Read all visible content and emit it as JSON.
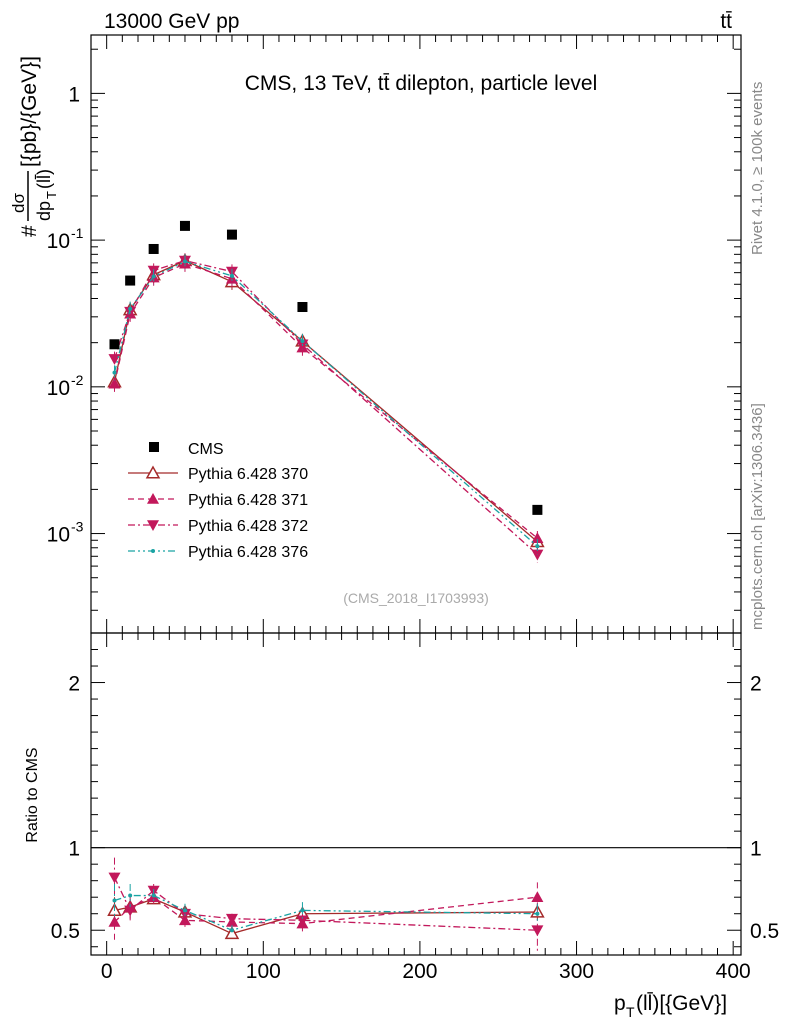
{
  "chart_data": {
    "type": "line",
    "header": {
      "left": "13000 GeV pp",
      "right": "tt̄"
    },
    "title": "CMS, 13 TeV, tt̄ dilepton, particle level",
    "ylabel_main": "#dσ/dp_T(ll̄)[{pb}/{GeV}]",
    "ylabel_main_parts": {
      "hash": "#",
      "num": "dσ",
      "den": "dp",
      "sub": "T",
      "denrest": "(ll̄)",
      "units": "[{pb}/{GeV}]"
    },
    "ylabel_ratio": "Ratio to CMS",
    "xlabel": "p_T(ll̄)[{GeV}]",
    "xlabel_parts": {
      "p": "p",
      "sub": "T",
      "rest": "(ll̄)[{GeV}]"
    },
    "watermark": "(CMS_2018_I1703993)",
    "side_top": "Rivet 4.1.0, ≥ 100k events",
    "side_bottom": "mcplots.cern.ch [arXiv:1306.3436]",
    "xlim": [
      -10,
      405
    ],
    "ylim_main": [
      0.00021,
      2.5
    ],
    "ylim_ratio": [
      0.35,
      2.3
    ],
    "x_ticks": [
      0,
      100,
      200,
      300,
      400
    ],
    "x_tick_labels": [
      "0",
      "100",
      "200",
      "300",
      "400"
    ],
    "y_ticks_main": [
      0.001,
      0.01,
      0.1,
      1
    ],
    "y_tick_labels_main": [
      "10^-3",
      "10^-2",
      "10^-1",
      "1"
    ],
    "y_ticks_ratio": [
      0.5,
      1,
      2
    ],
    "y_tick_labels_ratio": [
      "0.5",
      "1",
      "2"
    ],
    "x": [
      5,
      15,
      30,
      50,
      80,
      125,
      275
    ],
    "cms": [
      0.0195,
      0.053,
      0.087,
      0.125,
      0.109,
      0.035,
      0.00145
    ],
    "series": [
      {
        "name": "Pythia 6.428 370",
        "color": "#a52a2a",
        "style": "solid",
        "marker": "triangle-open",
        "values": [
          0.0108,
          0.0335,
          0.058,
          0.0725,
          0.052,
          0.0205,
          0.00088
        ],
        "ratio": [
          0.62,
          0.64,
          0.69,
          0.61,
          0.48,
          0.6,
          0.61
        ],
        "ratio_err": [
          0.08,
          0.05,
          0.03,
          0.03,
          0.03,
          0.04,
          0.05
        ]
      },
      {
        "name": "Pythia 6.428 371",
        "color": "#c2185b",
        "style": "dashed",
        "marker": "triangle-up",
        "values": [
          0.0105,
          0.0315,
          0.0555,
          0.069,
          0.0545,
          0.0185,
          0.00093
        ],
        "ratio": [
          0.55,
          0.64,
          0.7,
          0.56,
          0.55,
          0.54,
          0.7
        ],
        "ratio_err": [
          0.11,
          0.07,
          0.04,
          0.04,
          0.04,
          0.05,
          0.09
        ]
      },
      {
        "name": "Pythia 6.428 372",
        "color": "#c2185b",
        "style": "dashdot",
        "marker": "triangle-down",
        "values": [
          0.0155,
          0.0325,
          0.062,
          0.0725,
          0.061,
          0.0195,
          0.00072
        ],
        "ratio": [
          0.82,
          0.62,
          0.74,
          0.6,
          0.57,
          0.56,
          0.5
        ],
        "ratio_err": [
          0.12,
          0.06,
          0.04,
          0.04,
          0.03,
          0.04,
          0.13
        ]
      },
      {
        "name": "Pythia 6.428 376",
        "color": "#1aa3a3",
        "style": "dashdotdot",
        "marker": "dot",
        "values": [
          0.0125,
          0.034,
          0.0565,
          0.0715,
          0.057,
          0.0205,
          0.00082
        ],
        "ratio": [
          0.68,
          0.71,
          0.71,
          0.62,
          0.5,
          0.62,
          0.6
        ],
        "ratio_err": [
          0.1,
          0.07,
          0.04,
          0.04,
          0.03,
          0.05,
          0.06
        ]
      }
    ],
    "legend_cms": "CMS",
    "legend_position": "lower-left"
  }
}
